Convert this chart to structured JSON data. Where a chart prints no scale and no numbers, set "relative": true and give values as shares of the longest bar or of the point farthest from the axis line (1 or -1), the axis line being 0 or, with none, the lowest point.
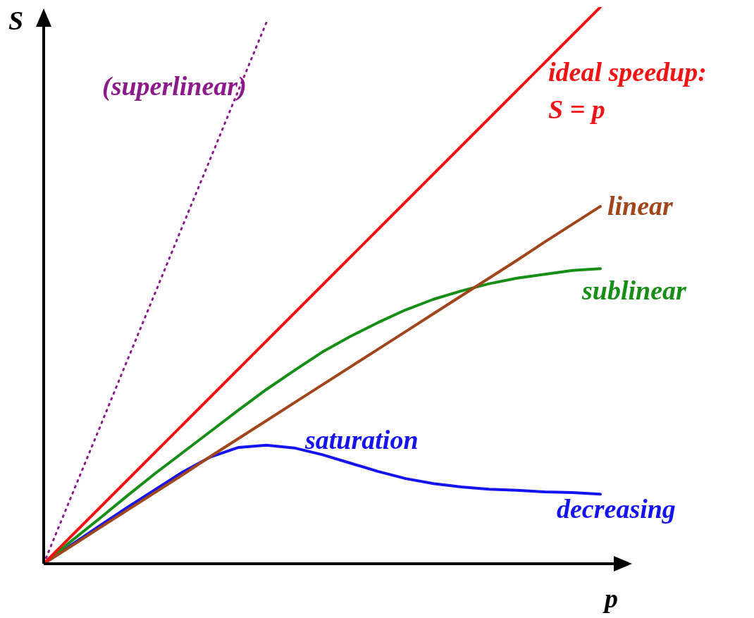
{
  "chart_data": {
    "type": "line",
    "relative": true,
    "xlabel": "p",
    "ylabel": "S",
    "tick_labels": false,
    "categories": [
      null,
      null,
      null,
      null,
      null,
      null,
      null,
      null,
      null,
      null,
      null,
      null,
      null,
      null,
      null,
      null,
      null,
      null,
      null,
      null,
      null
    ],
    "series": [
      {
        "name": "(superlinear)",
        "color": "#8b1a8b",
        "line_style": "dotted",
        "values": [
          0,
          0.122,
          0.243,
          0.365,
          0.486,
          0.608,
          0.729,
          0.851,
          0.972,
          null,
          null,
          null,
          null,
          null,
          null,
          null,
          null,
          null,
          null,
          null,
          null
        ]
      },
      {
        "name": "ideal speedup: S = p",
        "color": "#f01414",
        "values": [
          0,
          0.05,
          0.1,
          0.15,
          0.2,
          0.25,
          0.3,
          0.35,
          0.4,
          0.45,
          0.5,
          0.55,
          0.6,
          0.65,
          0.7,
          0.75,
          0.8,
          0.85,
          0.9,
          0.95,
          1
        ]
      },
      {
        "name": "linear",
        "color": "#a0461a",
        "values": [
          0,
          0.032,
          0.064,
          0.096,
          0.128,
          0.16,
          0.193,
          0.225,
          0.257,
          0.289,
          0.321,
          0.353,
          0.385,
          0.417,
          0.449,
          0.481,
          0.513,
          0.545,
          0.578,
          0.61,
          0.642
        ]
      },
      {
        "name": "sublinear",
        "color": "#178f17",
        "values": [
          0,
          0.041,
          0.081,
          0.122,
          0.162,
          0.2,
          0.238,
          0.276,
          0.313,
          0.347,
          0.38,
          0.408,
          0.433,
          0.456,
          0.475,
          0.49,
          0.503,
          0.513,
          0.52,
          0.527,
          0.53
        ]
      },
      {
        "name": "saturation",
        "color": "#1414f0",
        "values": [
          0,
          0.034,
          0.068,
          0.101,
          0.133,
          0.165,
          0.192,
          0.209,
          0.213,
          0.208,
          0.196,
          0.181,
          0.166,
          0.153,
          0.144,
          0.138,
          0.134,
          0.132,
          0.129,
          0.128,
          0.125
        ]
      }
    ],
    "annotations": [
      "decreasing"
    ]
  }
}
